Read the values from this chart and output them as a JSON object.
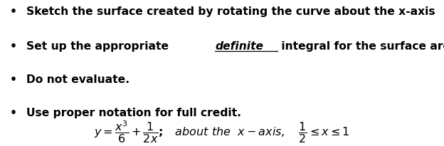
{
  "background_color": "#ffffff",
  "fig_width": 6.24,
  "fig_height": 2.06,
  "dpi": 100,
  "font_size_bullets": 11.2,
  "font_size_formula": 11.5,
  "bullet_color": "#000000",
  "bullet1": "Sketch the surface created by rotating the curve about the x-axis",
  "bullet2_pre": "Set up the appropriate ",
  "bullet2_underline": "definite",
  "bullet2_post": " integral for the surface area",
  "bullet3": "Do not evaluate.",
  "bullet4": "Use proper notation for full credit."
}
